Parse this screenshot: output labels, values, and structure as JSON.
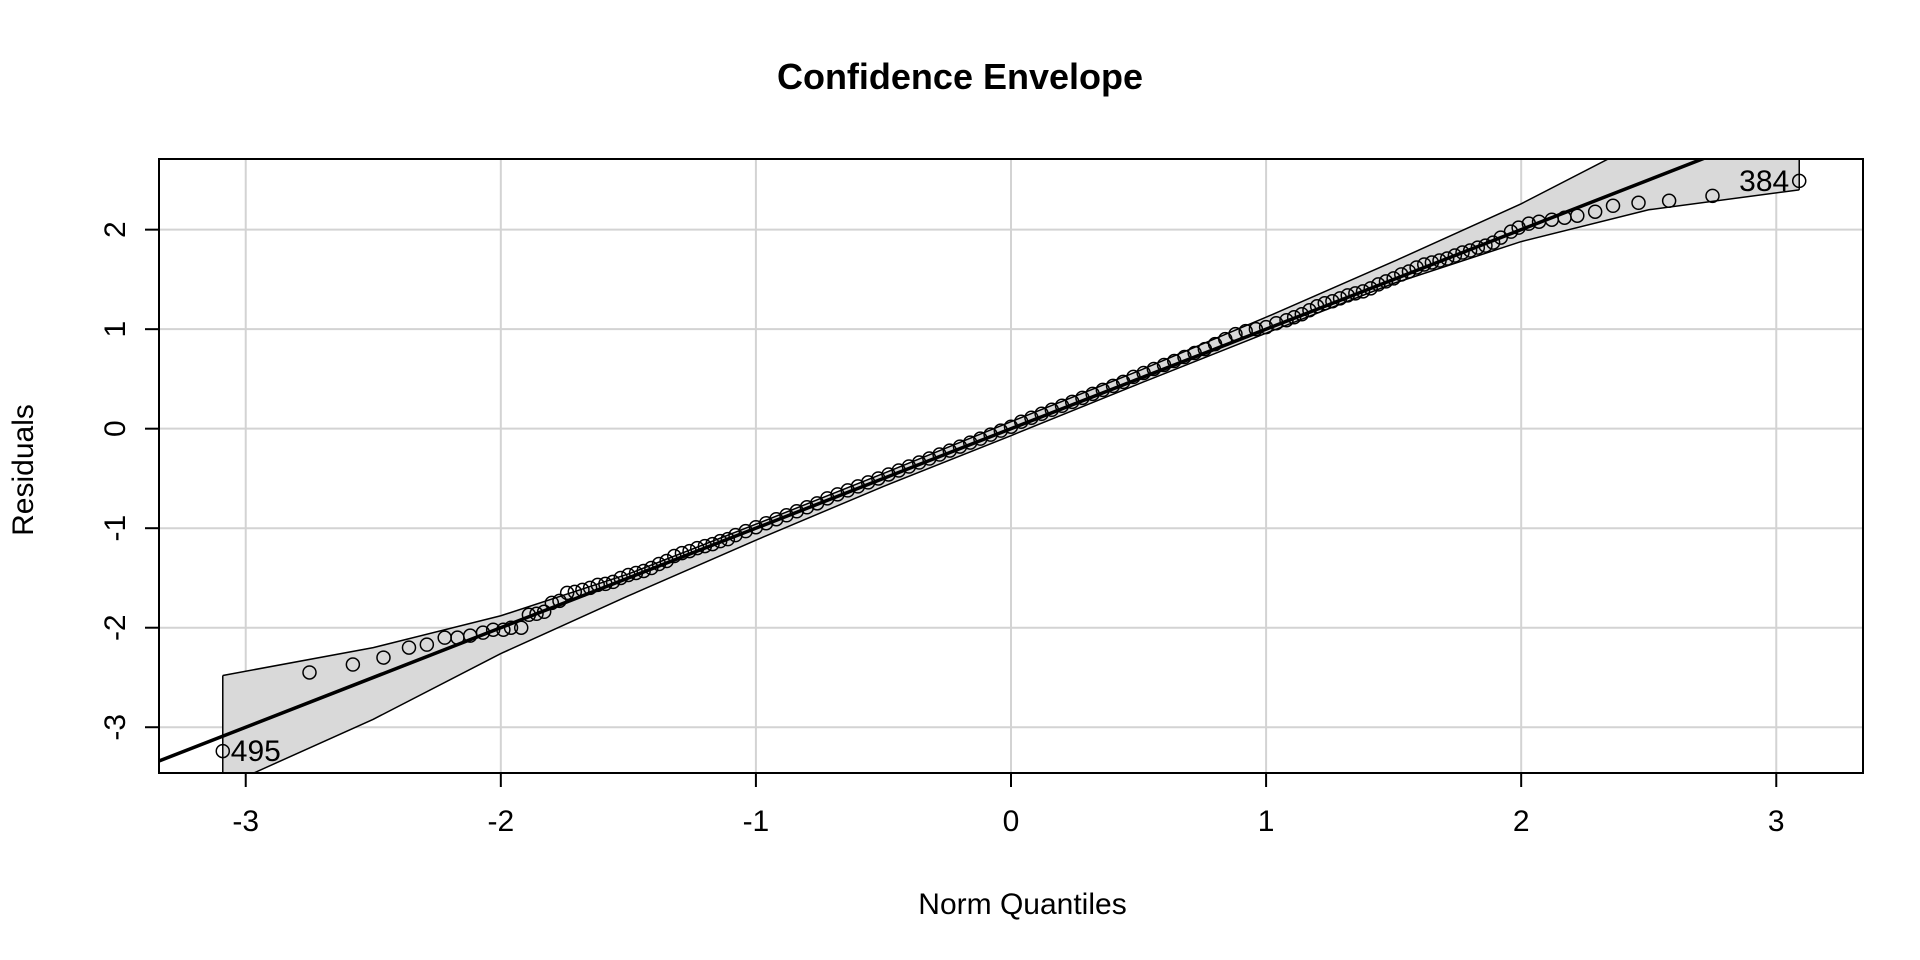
{
  "chart_data": {
    "type": "scatter",
    "title": "Confidence Envelope",
    "xlabel": "Norm Quantiles",
    "ylabel": "Residuals",
    "xlim": [
      -3.34,
      3.34
    ],
    "ylim": [
      -3.46,
      2.71
    ],
    "x_ticks": [
      -3,
      -2,
      -1,
      0,
      1,
      2,
      3
    ],
    "y_ticks": [
      -3,
      -2,
      -1,
      0,
      1,
      2
    ],
    "grid": true,
    "reference_line": {
      "intercept": 0.0,
      "slope": 1.0
    },
    "envelope": {
      "x": [
        -3.09,
        -2.5,
        -2.0,
        -1.5,
        -1.0,
        -0.5,
        0.0,
        0.5,
        1.0,
        1.5,
        2.0,
        2.5,
        3.09
      ],
      "upper": [
        -2.48,
        -2.2,
        -1.88,
        -1.46,
        -0.96,
        -0.45,
        0.07,
        0.58,
        1.12,
        1.68,
        2.26,
        2.92,
        3.6
      ],
      "lower": [
        -3.6,
        -2.92,
        -2.26,
        -1.68,
        -1.12,
        -0.58,
        -0.07,
        0.45,
        0.96,
        1.46,
        1.88,
        2.2,
        2.4
      ]
    },
    "points": {
      "x": [
        -3.09,
        -2.75,
        -2.58,
        -2.46,
        -2.36,
        -2.29,
        -2.22,
        -2.17,
        -2.12,
        -2.07,
        -2.03,
        -1.99,
        -1.96,
        -1.92,
        -1.89,
        -1.86,
        -1.83,
        -1.8,
        -1.77,
        -1.74,
        -1.71,
        -1.68,
        -1.65,
        -1.62,
        -1.59,
        -1.56,
        -1.53,
        -1.5,
        -1.47,
        -1.44,
        -1.41,
        -1.38,
        -1.35,
        -1.32,
        -1.29,
        -1.26,
        -1.23,
        -1.2,
        -1.17,
        -1.14,
        -1.11,
        -1.08,
        -1.04,
        -1.0,
        -0.96,
        -0.92,
        -0.88,
        -0.84,
        -0.8,
        -0.76,
        -0.72,
        -0.68,
        -0.64,
        -0.6,
        -0.56,
        -0.52,
        -0.48,
        -0.44,
        -0.4,
        -0.36,
        -0.32,
        -0.28,
        -0.24,
        -0.2,
        -0.16,
        -0.12,
        -0.08,
        -0.04,
        0.0,
        0.04,
        0.08,
        0.12,
        0.16,
        0.2,
        0.24,
        0.28,
        0.32,
        0.36,
        0.4,
        0.44,
        0.48,
        0.52,
        0.56,
        0.6,
        0.64,
        0.68,
        0.72,
        0.76,
        0.8,
        0.84,
        0.88,
        0.92,
        0.96,
        1.0,
        1.04,
        1.08,
        1.11,
        1.14,
        1.17,
        1.2,
        1.23,
        1.26,
        1.29,
        1.32,
        1.35,
        1.38,
        1.41,
        1.44,
        1.47,
        1.5,
        1.53,
        1.56,
        1.59,
        1.62,
        1.65,
        1.68,
        1.71,
        1.74,
        1.77,
        1.8,
        1.83,
        1.86,
        1.89,
        1.92,
        1.96,
        1.99,
        2.03,
        2.07,
        2.12,
        2.17,
        2.22,
        2.29,
        2.36,
        2.46,
        2.58,
        2.75,
        3.09
      ],
      "y": [
        -3.24,
        -2.45,
        -2.37,
        -2.3,
        -2.2,
        -2.17,
        -2.1,
        -2.1,
        -2.08,
        -2.05,
        -2.02,
        -2.02,
        -2.0,
        -2.0,
        -1.87,
        -1.86,
        -1.84,
        -1.75,
        -1.73,
        -1.65,
        -1.64,
        -1.62,
        -1.6,
        -1.57,
        -1.56,
        -1.54,
        -1.5,
        -1.47,
        -1.45,
        -1.43,
        -1.4,
        -1.36,
        -1.33,
        -1.28,
        -1.25,
        -1.23,
        -1.2,
        -1.18,
        -1.16,
        -1.13,
        -1.11,
        -1.07,
        -1.03,
        -0.99,
        -0.95,
        -0.91,
        -0.87,
        -0.83,
        -0.79,
        -0.75,
        -0.7,
        -0.66,
        -0.62,
        -0.58,
        -0.54,
        -0.5,
        -0.46,
        -0.42,
        -0.38,
        -0.34,
        -0.3,
        -0.26,
        -0.22,
        -0.18,
        -0.14,
        -0.1,
        -0.06,
        -0.02,
        0.02,
        0.07,
        0.11,
        0.15,
        0.19,
        0.23,
        0.27,
        0.31,
        0.35,
        0.39,
        0.43,
        0.47,
        0.52,
        0.56,
        0.6,
        0.64,
        0.68,
        0.72,
        0.76,
        0.8,
        0.85,
        0.9,
        0.95,
        0.98,
        1.0,
        1.02,
        1.06,
        1.09,
        1.12,
        1.15,
        1.19,
        1.23,
        1.26,
        1.28,
        1.31,
        1.34,
        1.36,
        1.38,
        1.41,
        1.45,
        1.48,
        1.51,
        1.55,
        1.58,
        1.62,
        1.65,
        1.67,
        1.69,
        1.71,
        1.74,
        1.77,
        1.79,
        1.82,
        1.84,
        1.87,
        1.92,
        1.98,
        2.02,
        2.06,
        2.08,
        2.1,
        2.12,
        2.14,
        2.18,
        2.24,
        2.27,
        2.29,
        2.34,
        2.49
      ]
    },
    "labels": [
      {
        "text": "384",
        "x": 3.09,
        "y": 2.49
      },
      {
        "text": "495",
        "x": -3.09,
        "y": -3.24
      }
    ]
  }
}
